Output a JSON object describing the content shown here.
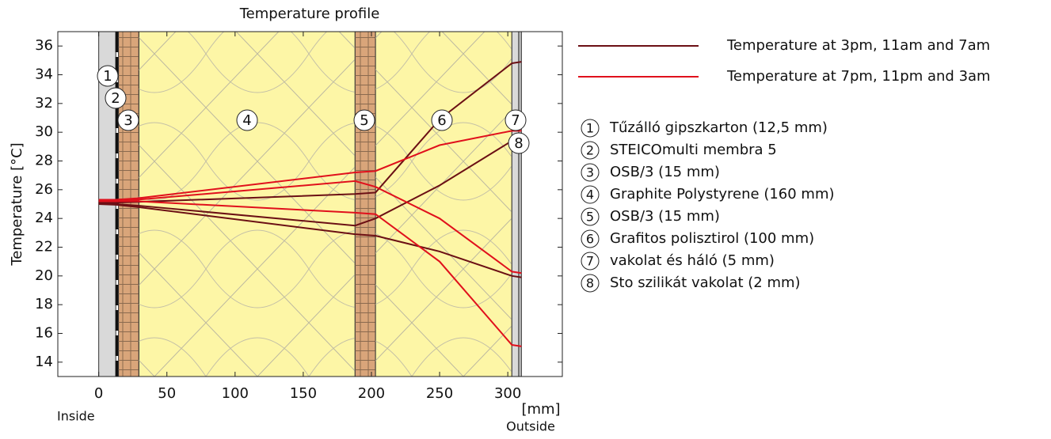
{
  "chart_data": {
    "type": "line",
    "title": "Temperature profile",
    "ylabel": "Temperature  [°C]",
    "xlabel": "[mm]",
    "left_note": "Inside",
    "right_note": "Outside",
    "xlim": [
      -30,
      340
    ],
    "ylim": [
      13,
      37
    ],
    "xticks": [
      0,
      50,
      100,
      150,
      200,
      250,
      300
    ],
    "yticks": [
      14,
      16,
      18,
      20,
      22,
      24,
      26,
      28,
      30,
      32,
      34,
      36
    ],
    "grid": false,
    "layers": [
      {
        "number": 1,
        "name": "Tűzálló gipszkarton (12,5 mm)",
        "start": 0,
        "end": 12.5,
        "color": "#d9d9d9"
      },
      {
        "number": 2,
        "name": "STEICOmulti membra 5",
        "start": 12.5,
        "end": 14.5,
        "color": "#111111"
      },
      {
        "number": 3,
        "name": "OSB/3 (15 mm)",
        "start": 14.5,
        "end": 29.5,
        "color": "#d9a57a"
      },
      {
        "number": 4,
        "name": "Graphite Polystyrene (160 mm)",
        "start": 29.5,
        "end": 188,
        "color": "#fdf6a6"
      },
      {
        "number": 5,
        "name": "OSB/3 (15 mm)",
        "start": 188,
        "end": 203,
        "color": "#d9a57a"
      },
      {
        "number": 6,
        "name": "Grafitos polisztirol (100 mm)",
        "start": 203,
        "end": 303,
        "color": "#fdf6a6"
      },
      {
        "number": 7,
        "name": "vakolat és háló (5 mm)",
        "start": 303,
        "end": 308,
        "color": "#d9d9d9"
      },
      {
        "number": 8,
        "name": "Sto szilikát vakolat (2 mm)",
        "start": 308,
        "end": 310,
        "color": "#bdbdbd"
      }
    ],
    "x": [
      0,
      12.5,
      28,
      188,
      203,
      250,
      303,
      310
    ],
    "series": [
      {
        "name": "Temperature at 3pm, 11am and 7am",
        "color": "#6b0f14",
        "curves": [
          [
            25.1,
            25.1,
            25.15,
            25.7,
            25.8,
            30.9,
            34.8,
            34.9
          ],
          [
            25.0,
            25.0,
            24.9,
            23.5,
            24.0,
            26.3,
            29.4,
            29.8
          ],
          [
            25.0,
            24.95,
            24.8,
            22.9,
            22.8,
            21.7,
            20.0,
            19.9
          ]
        ]
      },
      {
        "name": "Temperature at 7pm, 11pm and 3am",
        "color": "#e0101c",
        "curves": [
          [
            25.3,
            25.3,
            25.4,
            27.2,
            27.3,
            29.1,
            30.1,
            30.1
          ],
          [
            25.2,
            25.2,
            25.3,
            26.6,
            26.2,
            24.0,
            20.3,
            20.2
          ],
          [
            25.2,
            25.2,
            25.2,
            24.4,
            24.3,
            21.0,
            15.2,
            15.1
          ]
        ]
      }
    ]
  }
}
